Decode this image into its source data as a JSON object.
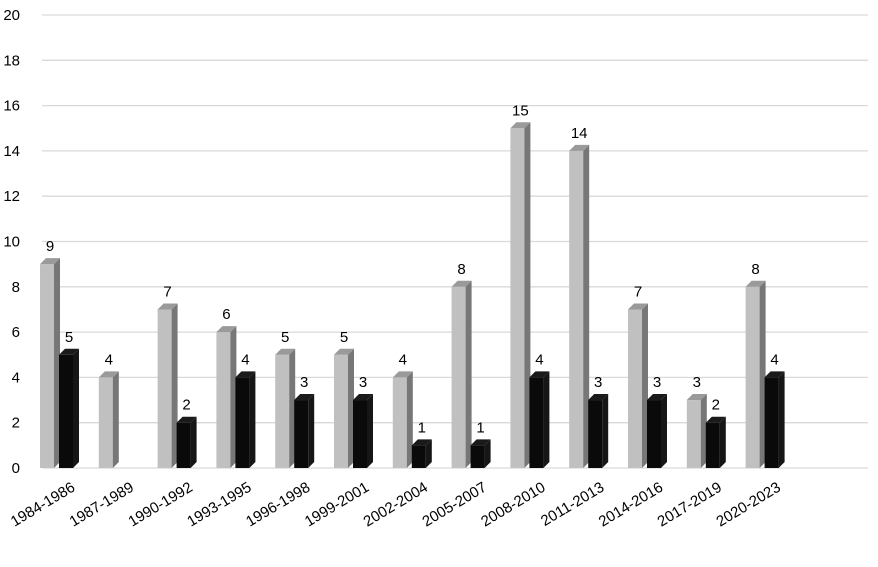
{
  "chart_data": {
    "type": "bar",
    "title": "",
    "xlabel": "",
    "ylabel": "",
    "ylim": [
      0,
      20
    ],
    "yticks": [
      0,
      2,
      4,
      6,
      8,
      10,
      12,
      14,
      16,
      18,
      20
    ],
    "grid": true,
    "legend": "none",
    "categories": [
      "1984-1986",
      "1987-1989",
      "1990-1992",
      "1993-1995",
      "1996-1998",
      "1999-2001",
      "2002-2004",
      "2005-2007",
      "2008-2010",
      "2011-2013",
      "2014-2016",
      "2017-2019",
      "2020-2023"
    ],
    "series": [
      {
        "values": [
          9,
          4,
          7,
          6,
          5,
          5,
          4,
          8,
          15,
          14,
          7,
          3,
          8
        ],
        "color": "#c0c0c0"
      },
      {
        "values": [
          5,
          null,
          2,
          4,
          3,
          3,
          1,
          1,
          4,
          3,
          3,
          2,
          4
        ],
        "color": "#0a0a0a"
      }
    ]
  }
}
